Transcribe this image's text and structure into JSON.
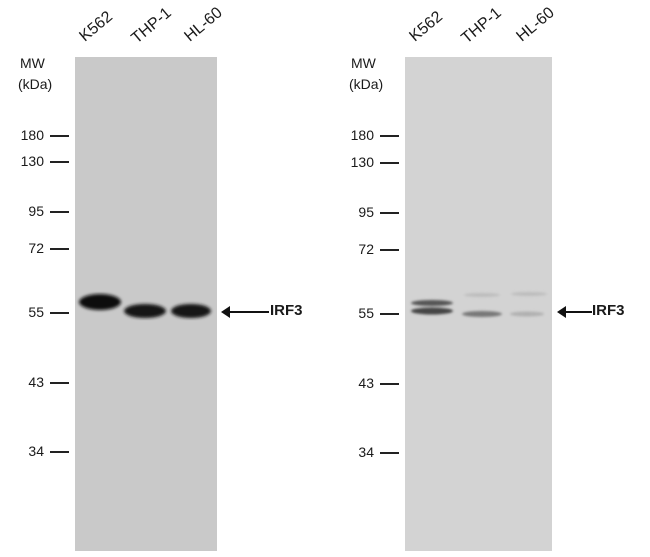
{
  "panels": [
    {
      "mw_label": "MW",
      "unit_label": "(kDa)",
      "lanes": [
        "K562",
        "THP-1",
        "HL-60"
      ],
      "markers": [
        "180",
        "130",
        "95",
        "72",
        "55",
        "43",
        "34"
      ],
      "target": "IRF3",
      "background": "#c9c9c9"
    },
    {
      "mw_label": "MW",
      "unit_label": "(kDa)",
      "lanes": [
        "K562",
        "THP-1",
        "HL-60"
      ],
      "markers": [
        "180",
        "130",
        "95",
        "72",
        "55",
        "43",
        "34"
      ],
      "target": "IRF3",
      "background": "#d3d3d3"
    }
  ]
}
